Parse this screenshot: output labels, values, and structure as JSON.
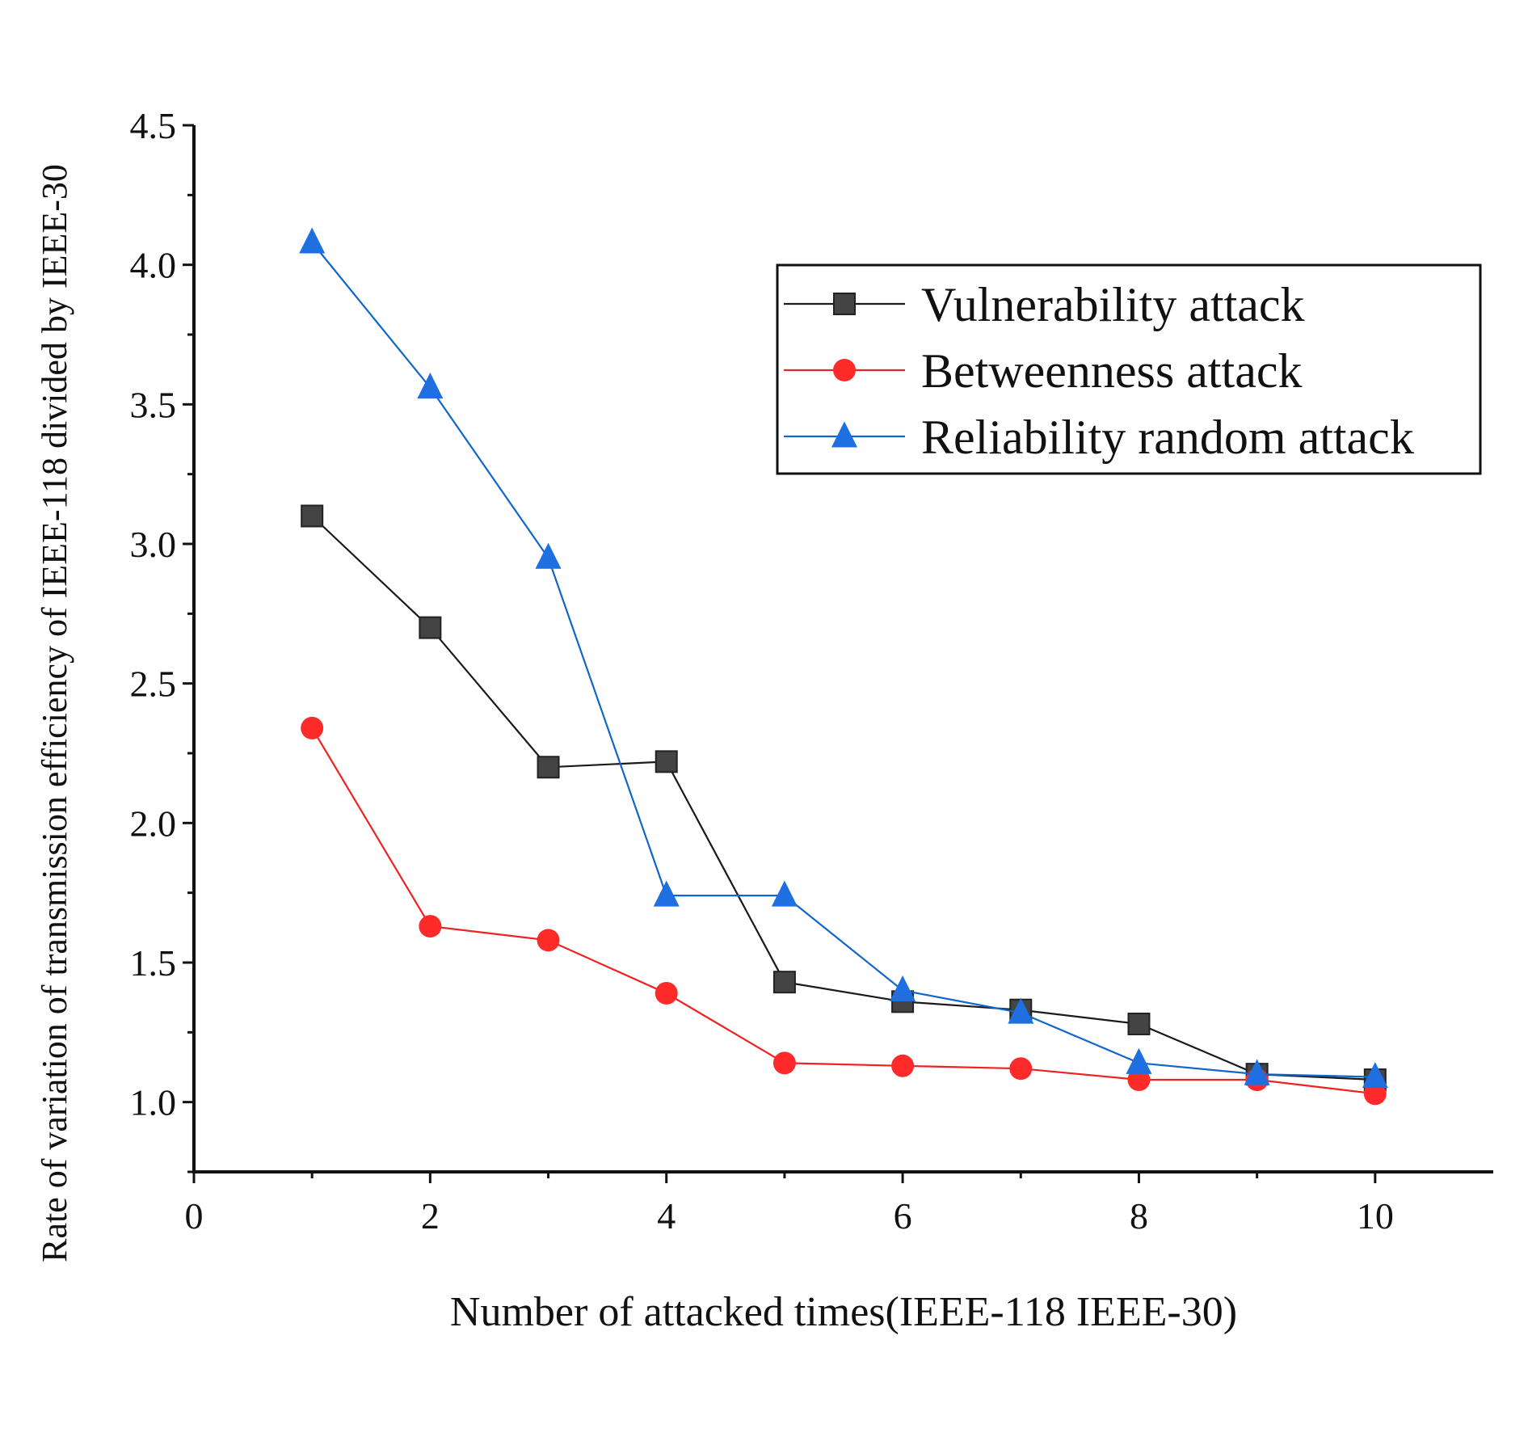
{
  "chart_data": {
    "type": "line",
    "title": "",
    "xlabel": "Number of attacked times(IEEE-118 IEEE-30)",
    "ylabel": "Rate of variation of transmission efficiency of IEEE-118 divided by IEEE-30",
    "xlim": [
      0,
      11
    ],
    "ylim": [
      0.75,
      4.5
    ],
    "x_ticks": [
      0,
      2,
      4,
      6,
      8,
      10
    ],
    "x_tick_labels": [
      "0",
      "2",
      "4",
      "6",
      "8",
      "10"
    ],
    "y_ticks": [
      1.0,
      1.5,
      2.0,
      2.5,
      3.0,
      3.5,
      4.0,
      4.5
    ],
    "y_tick_labels": [
      "1.0",
      "1.5",
      "2.0",
      "2.5",
      "3.0",
      "3.5",
      "4.0",
      "4.5"
    ],
    "grid": false,
    "legend_position": "top-right",
    "x": [
      1,
      2,
      3,
      4,
      5,
      6,
      7,
      8,
      9,
      10
    ],
    "series": [
      {
        "name": "Vulnerability attack",
        "color": "#1a1a1a",
        "marker_color": "#444444",
        "marker": "square",
        "values": [
          3.1,
          2.7,
          2.2,
          2.22,
          1.43,
          1.36,
          1.33,
          1.28,
          1.1,
          1.08
        ]
      },
      {
        "name": "Betweenness attack",
        "color": "#ee2222",
        "marker_color": "#ff2b2b",
        "marker": "circle",
        "values": [
          2.34,
          1.63,
          1.58,
          1.39,
          1.14,
          1.13,
          1.12,
          1.08,
          1.08,
          1.03
        ]
      },
      {
        "name": "Reliability random attack",
        "color": "#1166cc",
        "marker_color": "#1f6fe0",
        "marker": "triangle",
        "values": [
          4.08,
          3.56,
          2.95,
          1.74,
          1.74,
          1.4,
          1.32,
          1.14,
          1.1,
          1.09
        ]
      }
    ]
  }
}
